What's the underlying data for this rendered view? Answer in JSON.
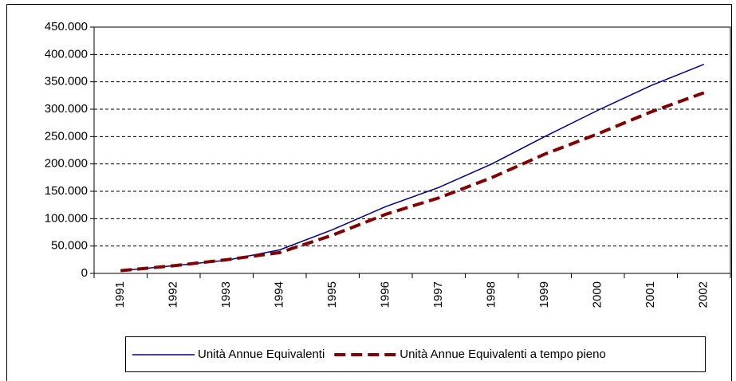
{
  "chart_data": {
    "type": "line",
    "categories": [
      "1991",
      "1992",
      "1993",
      "1994",
      "1995",
      "1996",
      "1997",
      "1998",
      "1999",
      "2000",
      "2001",
      "2002"
    ],
    "series": [
      {
        "name": "Unità Annue Equivalenti",
        "color": "#000080",
        "dash": false,
        "values": [
          5000,
          14000,
          24000,
          43000,
          80000,
          122000,
          157000,
          200000,
          250000,
          298000,
          343000,
          382000
        ]
      },
      {
        "name": "Unità Annue Equivalenti a tempo pieno",
        "color": "#800000",
        "dash": true,
        "values": [
          5000,
          14000,
          25000,
          38000,
          70000,
          108000,
          138000,
          175000,
          218000,
          255000,
          295000,
          330000
        ]
      }
    ],
    "ylim": [
      0,
      450000
    ],
    "yticks": [
      0,
      {
        "value": 50000,
        "label": "50.000"
      },
      {
        "value": 100000,
        "label": "100.000"
      },
      {
        "value": 150000,
        "label": "150.000"
      },
      {
        "value": 200000,
        "label": "200.000"
      },
      {
        "value": 250000,
        "label": "250.000"
      },
      {
        "value": 300000,
        "label": "300.000"
      },
      {
        "value": 350000,
        "label": "350.000"
      },
      {
        "value": 400000,
        "label": "400.000"
      },
      {
        "value": 450000,
        "label": "450.000"
      }
    ],
    "grid": true,
    "legend": "bottom"
  }
}
